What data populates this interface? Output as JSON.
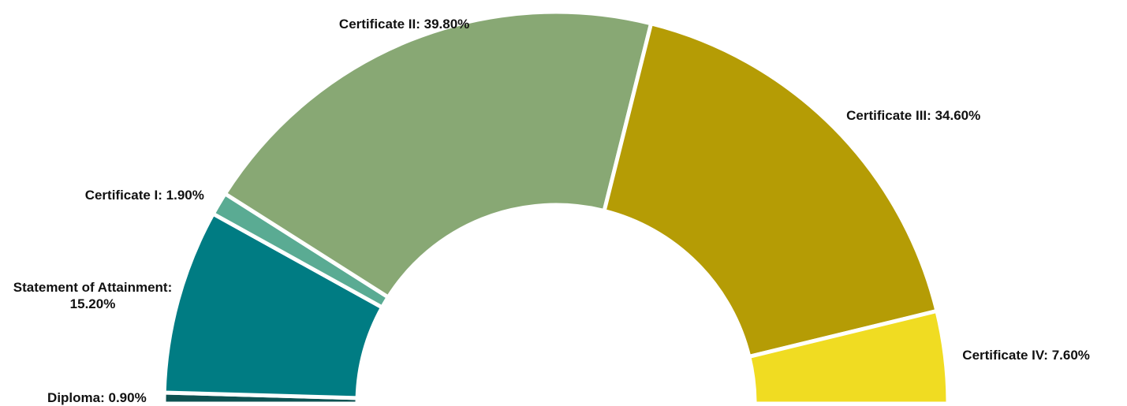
{
  "chart_data": {
    "type": "pie",
    "half": true,
    "categories": [
      "Diploma",
      "Statement of Attainment",
      "Certificate I",
      "Certificate II",
      "Certificate III",
      "Certificate IV"
    ],
    "values": [
      0.9,
      15.2,
      1.9,
      39.8,
      34.6,
      7.6
    ],
    "value_labels": [
      "0.90%",
      "15.20%",
      "1.90%",
      "39.80%",
      "34.60%",
      "7.60%"
    ],
    "colors": [
      "#0d5252",
      "#007c83",
      "#5aab93",
      "#88a874",
      "#b59c05",
      "#f0dc22"
    ]
  }
}
